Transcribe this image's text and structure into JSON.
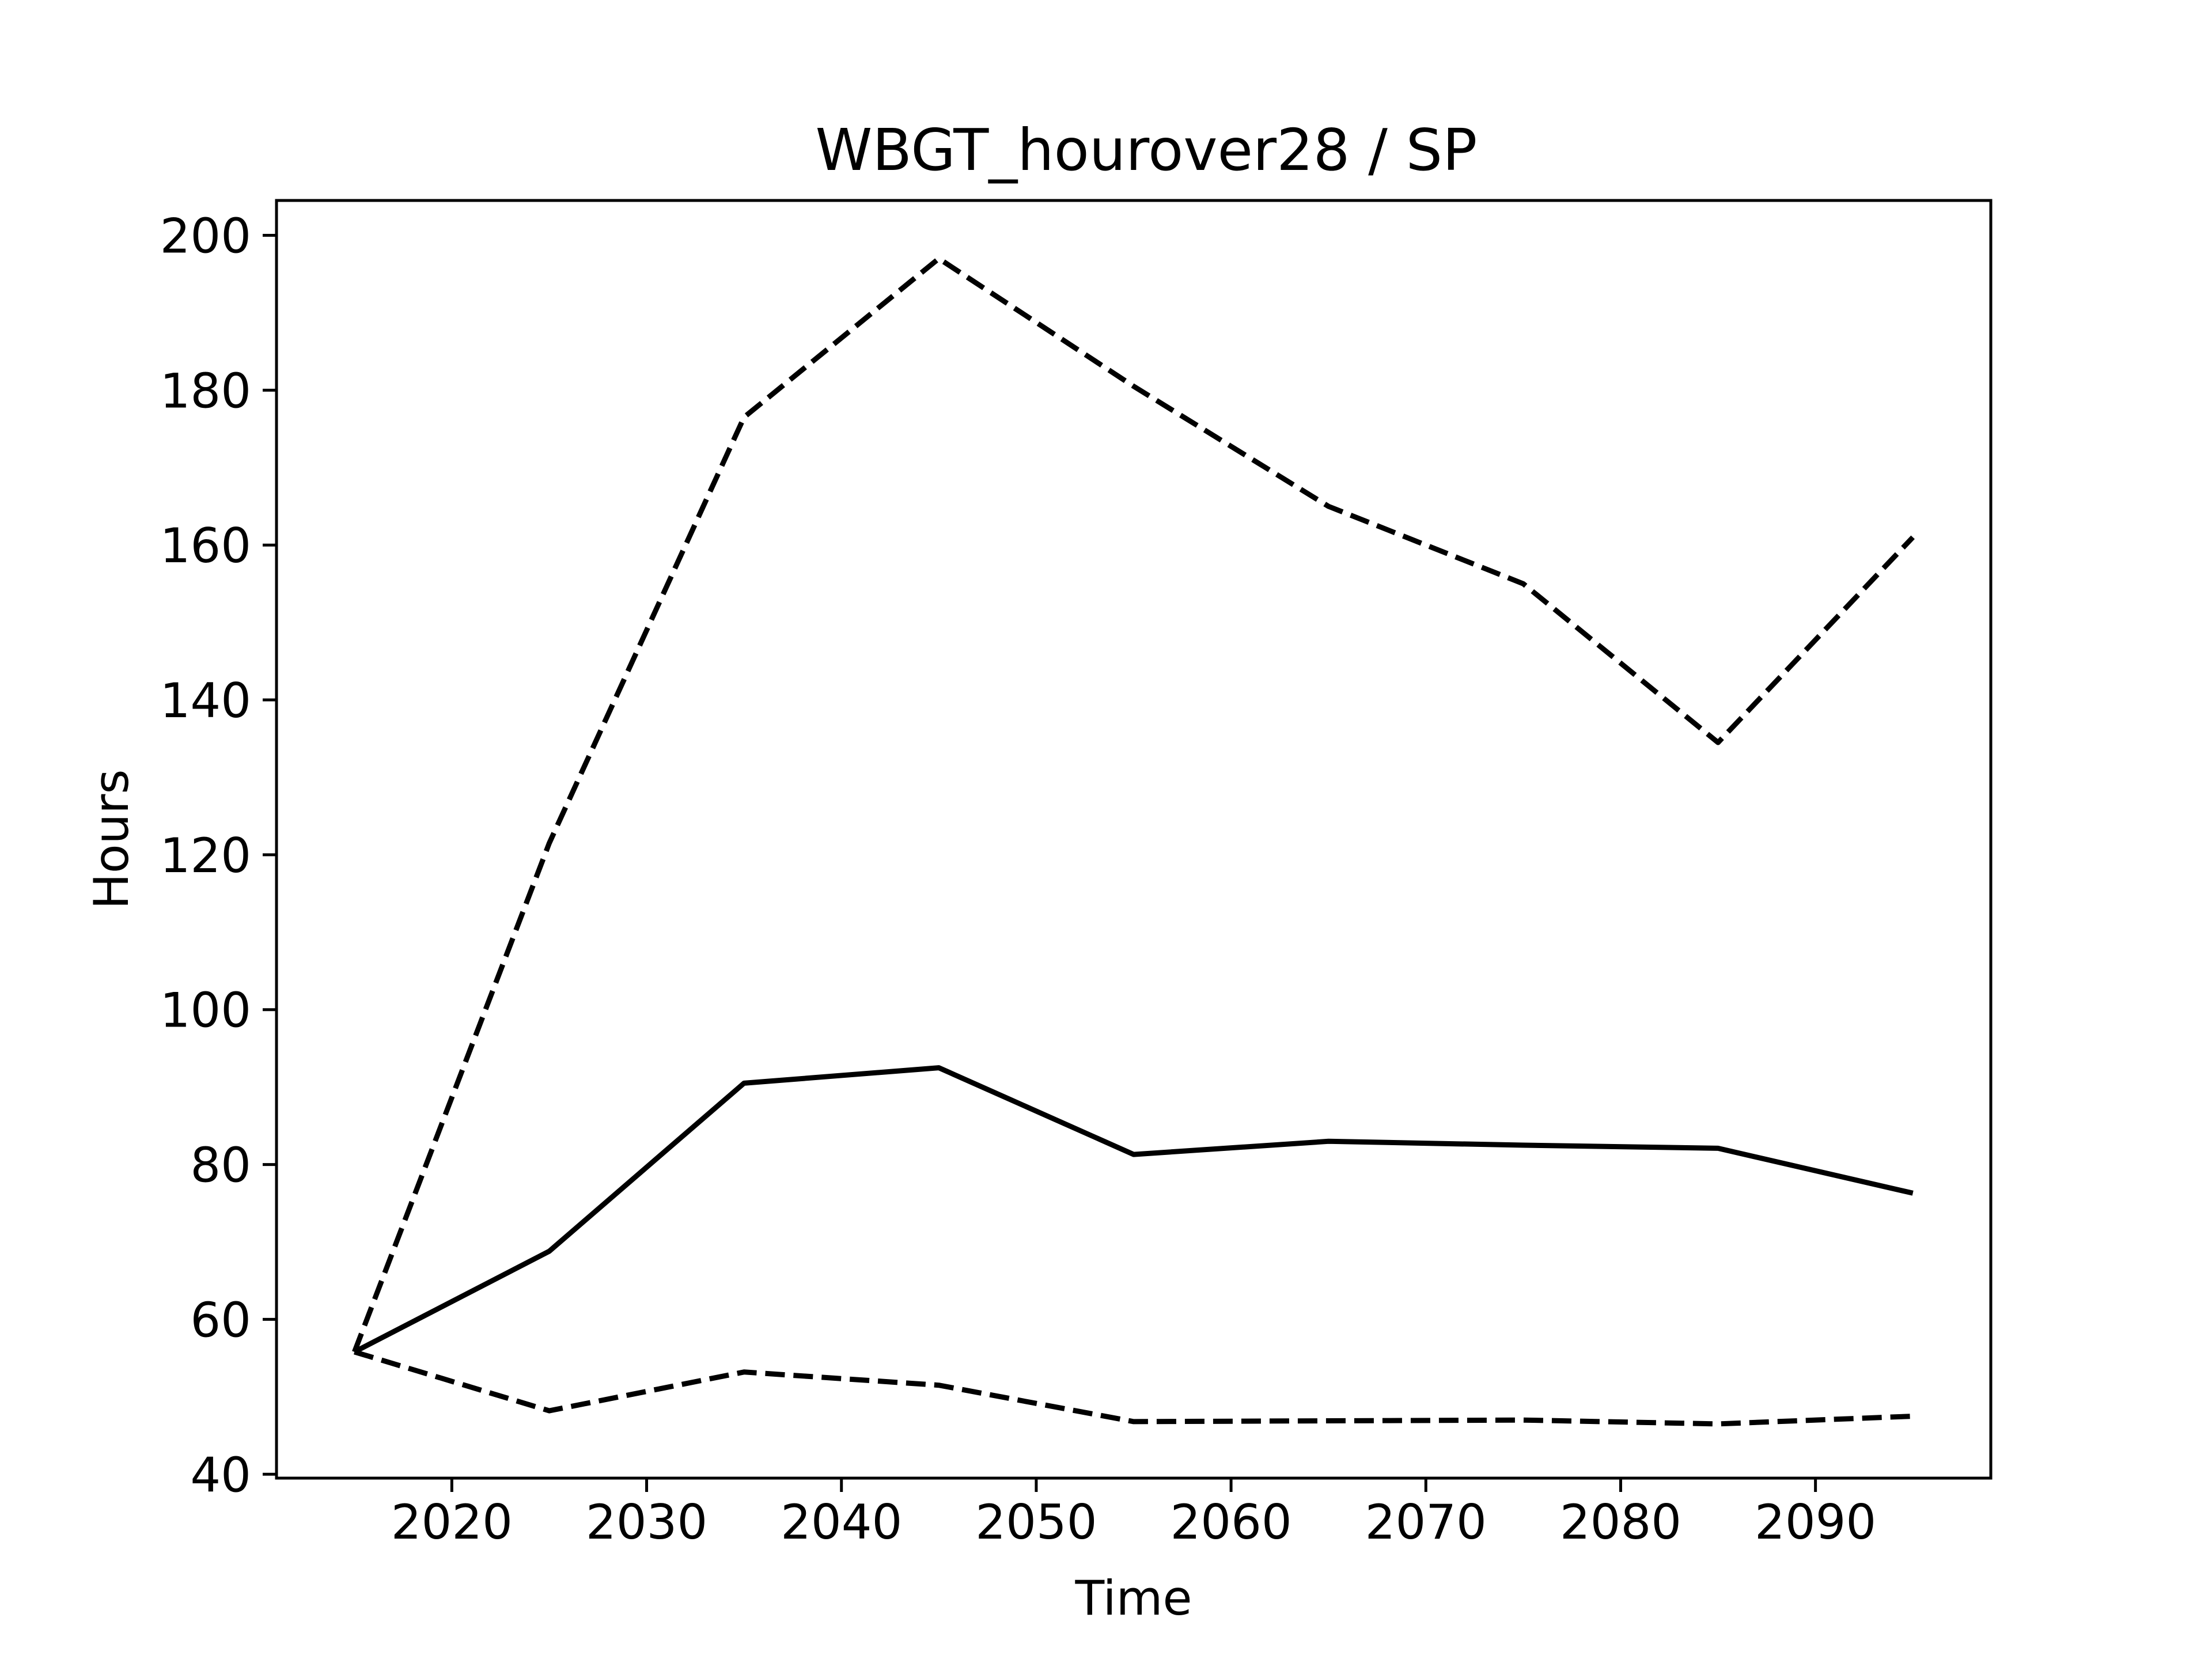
{
  "chart_data": {
    "type": "line",
    "title": "WBGT_hourover28 / SP",
    "xlabel": "Time",
    "ylabel": "Hours",
    "xlim": [
      2011,
      2099
    ],
    "ylim": [
      39.5,
      204.5
    ],
    "xticks": [
      2020,
      2030,
      2040,
      2050,
      2060,
      2070,
      2080,
      2090
    ],
    "yticks": [
      40,
      60,
      80,
      100,
      120,
      140,
      160,
      180,
      200
    ],
    "grid": false,
    "legend": "none",
    "colors": {
      "line": "#000000",
      "background": "#ffffff"
    },
    "x": [
      2015,
      2025,
      2035,
      2045,
      2055,
      2065,
      2075,
      2085,
      2095
    ],
    "series": [
      {
        "style": "dashed",
        "values": [
          55.8,
          121.5,
          176.5,
          197.0,
          180.5,
          165.0,
          155.0,
          134.5,
          161.0
        ]
      },
      {
        "style": "solid",
        "values": [
          55.8,
          68.8,
          90.5,
          92.5,
          81.3,
          83.0,
          82.5,
          82.1,
          76.3
        ]
      },
      {
        "style": "dashed",
        "values": [
          55.8,
          48.2,
          53.2,
          51.5,
          46.8,
          46.9,
          47.0,
          46.5,
          47.5
        ]
      }
    ]
  }
}
